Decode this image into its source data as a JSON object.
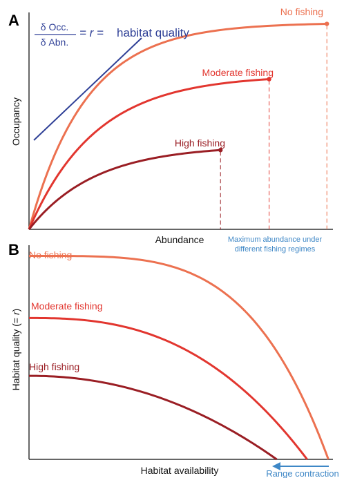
{
  "colors": {
    "no_fishing": "#EC7150",
    "moderate_fishing": "#E2362F",
    "high_fishing": "#9A1E24",
    "tangent": "#2E3F96",
    "annotation_blue": "#3E87C6",
    "axis": "#333333"
  },
  "panel_a": {
    "label": "A",
    "ylabel": "Occupancy",
    "xlabel": "Abundance",
    "equation": {
      "numerator": "δ Occ.",
      "denominator": "δ Abn.",
      "middle": "= r =",
      "rhs": "habitat quality"
    },
    "series": [
      {
        "name": "No fishing",
        "key": "no_fishing",
        "max_abundance_fraction": 0.98,
        "plateau_fraction": 0.985,
        "shape_k": 5.2
      },
      {
        "name": "Moderate fishing",
        "key": "moderate_fishing",
        "max_abundance_fraction": 0.79,
        "plateau_fraction": 0.72,
        "shape_k": 3.6
      },
      {
        "name": "High fishing",
        "key": "high_fishing",
        "max_abundance_fraction": 0.63,
        "plateau_fraction": 0.38,
        "shape_k": 2.9
      }
    ],
    "max_abundance_note": [
      "Maximum abundance under",
      "different fishing regimes"
    ]
  },
  "panel_b": {
    "label": "B",
    "ylabel_prefix": "Habitat quality (= ",
    "ylabel_r": "r",
    "ylabel_suffix": ")",
    "xlabel": "Habitat availability",
    "range_contraction": "Range contraction",
    "series": [
      {
        "name": "No fishing",
        "key": "no_fishing",
        "start_fraction": 0.95,
        "end_fraction": 0.985,
        "shape_p": 4.0
      },
      {
        "name": "Moderate fishing",
        "key": "moderate_fishing",
        "start_fraction": 0.66,
        "end_fraction": 0.915,
        "shape_p": 2.6
      },
      {
        "name": "High fishing",
        "key": "high_fishing",
        "start_fraction": 0.39,
        "end_fraction": 0.815,
        "shape_p": 2.1
      }
    ]
  }
}
